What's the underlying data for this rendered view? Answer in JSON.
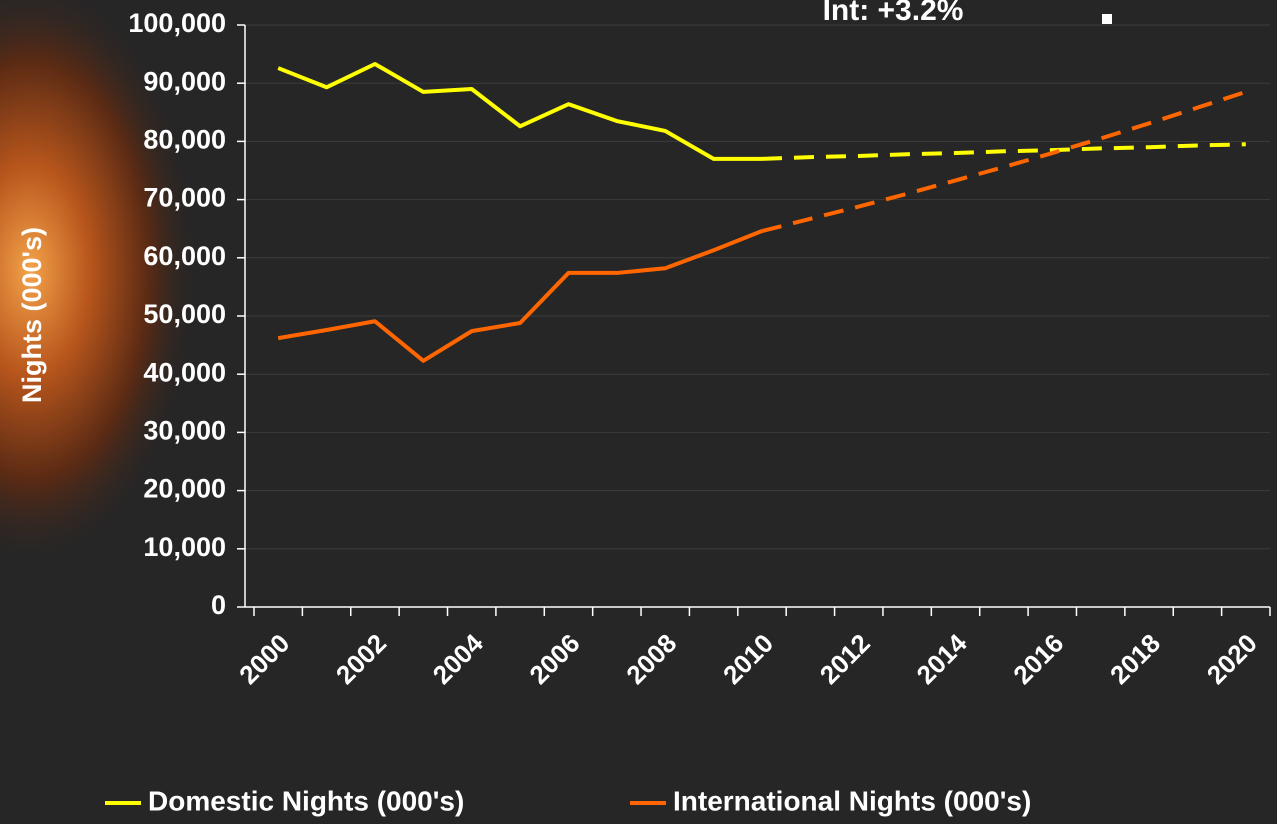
{
  "chart_data": {
    "type": "line",
    "annotation": "Int: +3.2%",
    "y_label": "Nights (000's)",
    "categories": [
      "2000",
      null,
      "2002",
      null,
      "2004",
      null,
      "2006",
      null,
      "2008",
      null,
      "2010",
      null,
      "2012",
      null,
      "2014",
      null,
      "2016",
      null,
      "2018",
      null,
      "2020"
    ],
    "series": [
      {
        "name": "Domestic Nights (000's)",
        "color": "#ffff00",
        "values": [
          92600,
          89300,
          93300,
          88500,
          89000,
          82600,
          86400,
          83500,
          81800,
          77000,
          77000,
          null,
          null,
          null,
          null,
          null,
          null,
          null,
          null,
          null,
          null
        ],
        "forecast": [
          null,
          null,
          null,
          null,
          null,
          null,
          null,
          null,
          null,
          null,
          77000,
          77300,
          77500,
          77800,
          78000,
          78300,
          78500,
          78800,
          79000,
          79300,
          79500
        ]
      },
      {
        "name": "International Nights (000's)",
        "color": "#ff6600",
        "values": [
          46200,
          47600,
          49100,
          42300,
          47400,
          48800,
          57400,
          57400,
          58200,
          61300,
          64600,
          null,
          null,
          null,
          null,
          null,
          null,
          null,
          null,
          null,
          null
        ],
        "forecast": [
          null,
          null,
          null,
          null,
          null,
          null,
          null,
          null,
          null,
          null,
          64600,
          66700,
          68800,
          71000,
          73300,
          75600,
          78000,
          80500,
          83100,
          85800,
          88500
        ]
      }
    ],
    "ylim": [
      0,
      100000
    ],
    "yticks": [
      {
        "value": 0,
        "label": "0"
      },
      {
        "value": 10000,
        "label": "10,000"
      },
      {
        "value": 20000,
        "label": "20,000"
      },
      {
        "value": 30000,
        "label": "30,000"
      },
      {
        "value": 40000,
        "label": "40,000"
      },
      {
        "value": 50000,
        "label": "50,000"
      },
      {
        "value": 60000,
        "label": "60,000"
      },
      {
        "value": 70000,
        "label": "70,000"
      },
      {
        "value": 80000,
        "label": "80,000"
      },
      {
        "value": 90000,
        "label": "90,000"
      },
      {
        "value": 100000,
        "label": "100,000"
      }
    ],
    "grid": true,
    "legend": "bottom"
  }
}
